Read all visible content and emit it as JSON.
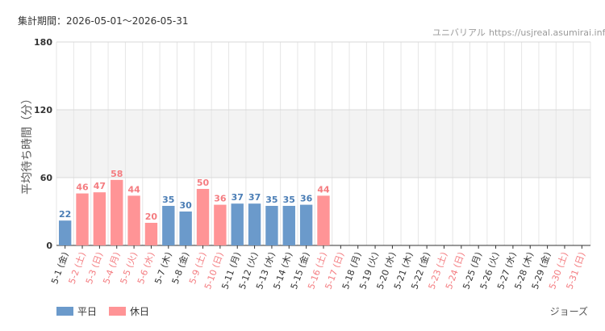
{
  "header": {
    "period": "集計期間：2026-05-01～2026-05-31",
    "source_name": "ユニバリアル",
    "source_url": "https://usjreal.asumirai.info"
  },
  "footer": {
    "attraction": "ジョーズ"
  },
  "colors": {
    "weekday": "#6b9acb",
    "holiday": "#ff9496",
    "holiday_text": "#f47c80",
    "weekday_text": "#4a7db5"
  },
  "chart_data": {
    "type": "bar",
    "ylabel": "平均待ち時間（分）",
    "ylim": [
      0,
      180
    ],
    "yticks": [
      0,
      60,
      120,
      180
    ],
    "grid": true,
    "legend": {
      "position": "bottom-left",
      "entries": [
        {
          "key": "weekday",
          "label": "平日"
        },
        {
          "key": "holiday",
          "label": "休日"
        }
      ]
    },
    "categories": [
      "5-1 (金)",
      "5-2 (土)",
      "5-3 (日)",
      "5-4 (月)",
      "5-5 (火)",
      "5-6 (水)",
      "5-7 (木)",
      "5-8 (金)",
      "5-9 (土)",
      "5-10 (日)",
      "5-11 (月)",
      "5-12 (火)",
      "5-13 (水)",
      "5-14 (木)",
      "5-15 (金)",
      "5-16 (土)",
      "5-17 (日)",
      "5-18 (月)",
      "5-19 (火)",
      "5-20 (水)",
      "5-21 (木)",
      "5-22 (金)",
      "5-23 (土)",
      "5-24 (日)",
      "5-25 (月)",
      "5-26 (火)",
      "5-27 (水)",
      "5-28 (木)",
      "5-29 (金)",
      "5-30 (土)",
      "5-31 (日)"
    ],
    "day_type": [
      "weekday",
      "holiday",
      "holiday",
      "holiday",
      "holiday",
      "holiday",
      "weekday",
      "weekday",
      "holiday",
      "holiday",
      "weekday",
      "weekday",
      "weekday",
      "weekday",
      "weekday",
      "holiday",
      "holiday",
      "weekday",
      "weekday",
      "weekday",
      "weekday",
      "weekday",
      "holiday",
      "holiday",
      "weekday",
      "weekday",
      "weekday",
      "weekday",
      "weekday",
      "holiday",
      "holiday"
    ],
    "values": [
      22,
      46,
      47,
      58,
      44,
      20,
      35,
      30,
      50,
      36,
      37,
      37,
      35,
      35,
      36,
      44,
      null,
      null,
      null,
      null,
      null,
      null,
      null,
      null,
      null,
      null,
      null,
      null,
      null,
      null,
      null
    ]
  }
}
